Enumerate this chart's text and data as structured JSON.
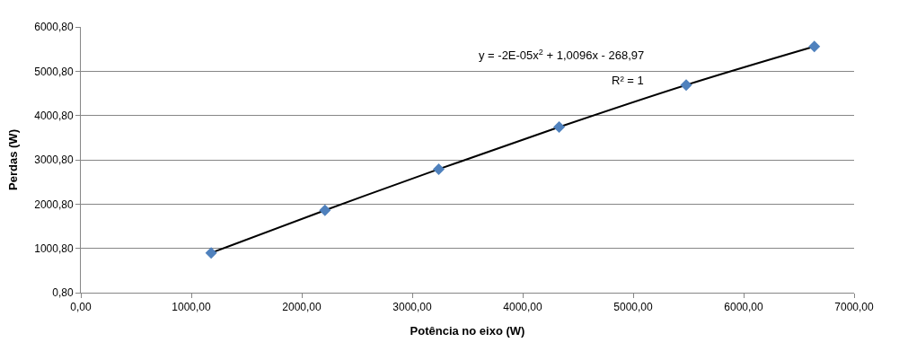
{
  "chart_data": {
    "type": "scatter",
    "xlabel": "Potência no eixo (W)",
    "ylabel": "Perdas (W)",
    "x": [
      1180,
      2210,
      3240,
      4330,
      5480,
      6640
    ],
    "series": [
      {
        "color": "#4f81bd",
        "marker": "diamond",
        "values": [
          900,
          1860,
          2790,
          3740,
          4690,
          5560
        ]
      },
      {
        "type": "line",
        "color": "#000000",
        "marker": "none",
        "line_style": "solid",
        "x": [
          1180,
          2210,
          3240,
          4330,
          5480,
          6640
        ],
        "values": [
          900,
          1860,
          2790,
          3740,
          4690,
          5560
        ]
      }
    ],
    "xlim": [
      0,
      7000
    ],
    "xticks": [
      {
        "value": 0,
        "label": "0,00"
      },
      {
        "value": 1000,
        "label": "1000,00"
      },
      {
        "value": 2000,
        "label": "2000,00"
      },
      {
        "value": 3000,
        "label": "3000,00"
      },
      {
        "value": 4000,
        "label": "4000,00"
      },
      {
        "value": 5000,
        "label": "5000,00"
      },
      {
        "value": 6000,
        "label": "6000,00"
      },
      {
        "value": 7000,
        "label": "7000,00"
      }
    ],
    "ylim": [
      0.8,
      6000.8
    ],
    "yticks": [
      {
        "value": 0.8,
        "label": "0,80"
      },
      {
        "value": 1000.8,
        "label": "1000,80"
      },
      {
        "value": 2000.8,
        "label": "2000,80"
      },
      {
        "value": 3000.8,
        "label": "3000,80"
      },
      {
        "value": 4000.8,
        "label": "4000,80"
      },
      {
        "value": 5000.8,
        "label": "5000,80"
      },
      {
        "value": 6000.8,
        "label": "6000,80"
      }
    ],
    "grid": "y",
    "annotations": [
      "y = -2E-05x$^{2}$ + 1,0096x - 268,97",
      "R² = 1"
    ]
  }
}
